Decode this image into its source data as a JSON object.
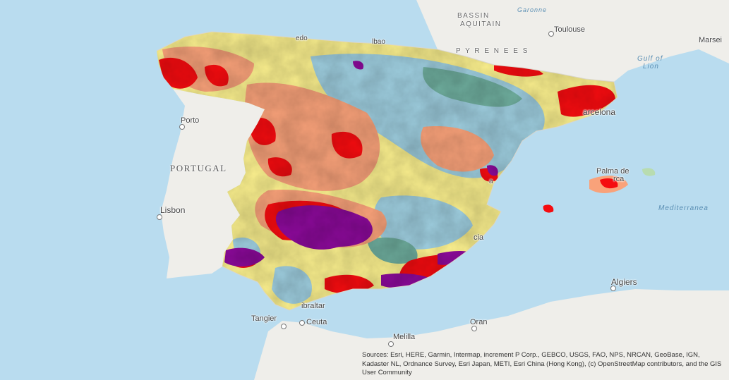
{
  "map": {
    "labels": {
      "bassin_aquitain_1": "BASSIN",
      "bassin_aquitain_2": "AQUITAIN",
      "garonne": "Garonne",
      "toulouse": "Toulouse",
      "marseille": "Marsei",
      "pyrenees": "P Y R E N E E S",
      "gulf_of_lion_1": "Gulf of",
      "gulf_of_lion_2": "Lion",
      "porto": "Porto",
      "portugal": "PORTUGAL",
      "lisbon": "Lisbon",
      "barcelona": "arcelona",
      "palma": "Palma de",
      "palma2": "rca",
      "mediterranean": "Mediterranea",
      "valencia": "cia",
      "algiers": "Algiers",
      "gibraltar": "ibraltar",
      "tangier": "Tangier",
      "ceuta": "Ceuta",
      "melilla": "Melilla",
      "oran": "Oran",
      "oviedo": "edo",
      "bilbao": "lbao",
      "valencia_v": "a"
    },
    "colors": {
      "sea": "#b9dcef",
      "land": "#efeeea",
      "violet": "#8b0a99",
      "red": "#f50c10",
      "salmon": "#f9a27a",
      "yellow": "#fbf08e",
      "lightblue": "#9fcfe0",
      "teal": "#6fae9e",
      "green": "#b8dcb0"
    }
  },
  "attribution": {
    "text": "Sources: Esri, HERE, Garmin, Intermap, increment P Corp., GEBCO, USGS, FAO, NPS, NRCAN, GeoBase, IGN, Kadaster NL, Ordnance Survey, Esri Japan, METI, Esri China (Hong Kong), (c) OpenStreetMap contributors, and the GIS User Community"
  }
}
